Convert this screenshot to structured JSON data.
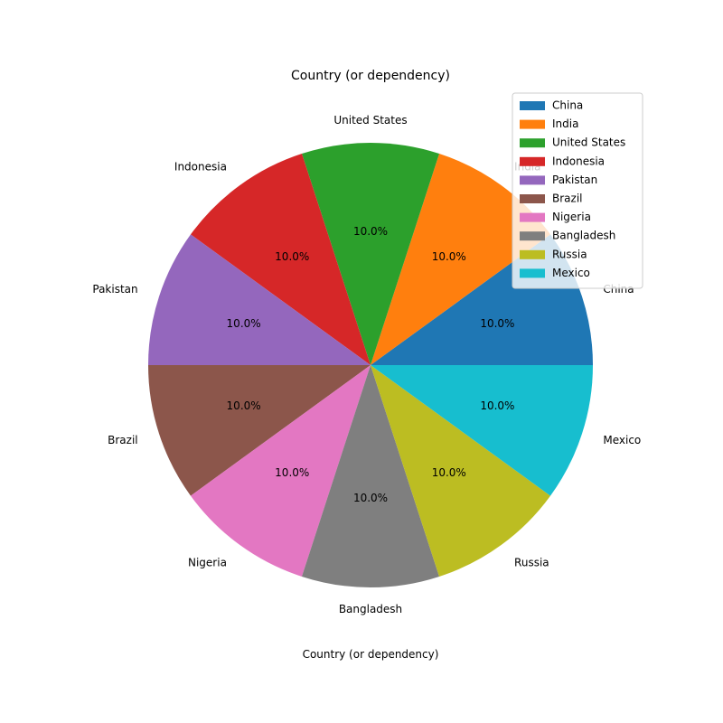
{
  "chart_data": {
    "type": "pie",
    "title": "Country (or dependency)",
    "xlabel": "Country (or dependency)",
    "ylabel": "",
    "start_angle_deg": 0,
    "direction": "counterclockwise",
    "legend_position": "top-right",
    "categories": [
      "China",
      "India",
      "United States",
      "Indonesia",
      "Pakistan",
      "Brazil",
      "Nigeria",
      "Bangladesh",
      "Russia",
      "Mexico"
    ],
    "values": [
      1,
      1,
      1,
      1,
      1,
      1,
      1,
      1,
      1,
      1
    ],
    "pct_labels": [
      "10.0%",
      "10.0%",
      "10.0%",
      "10.0%",
      "10.0%",
      "10.0%",
      "10.0%",
      "10.0%",
      "10.0%",
      "10.0%"
    ],
    "colors": [
      "#1f77b4",
      "#ff7f0e",
      "#2ca02c",
      "#d62728",
      "#9467bd",
      "#8c564b",
      "#e377c2",
      "#7f7f7f",
      "#bcbd22",
      "#17becf"
    ],
    "legend": {
      "entries": [
        "China",
        "India",
        "United States",
        "Indonesia",
        "Pakistan",
        "Brazil",
        "Nigeria",
        "Bangladesh",
        "Russia",
        "Mexico"
      ]
    }
  }
}
